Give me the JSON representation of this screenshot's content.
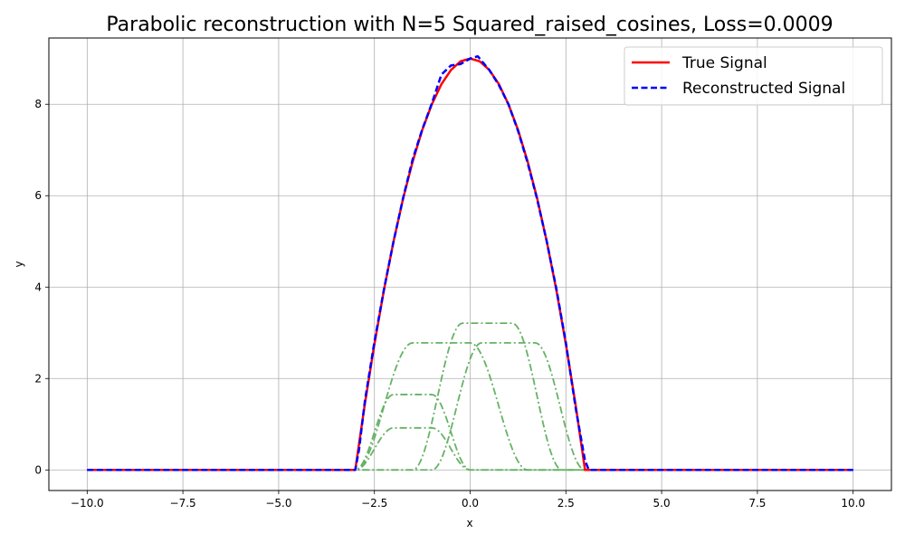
{
  "chart_data": {
    "type": "line",
    "title": "Parabolic reconstruction with N=5 Squared_raised_cosines, Loss=0.0009",
    "xlabel": "x",
    "ylabel": "y",
    "xlim": [
      -11,
      11
    ],
    "ylim": [
      -0.45,
      9.45
    ],
    "xticks": [
      -10,
      -7.5,
      -5,
      -2.5,
      0,
      2.5,
      5,
      7.5,
      10
    ],
    "xtick_labels": [
      "−10.0",
      "−7.5",
      "−5.0",
      "−2.5",
      "0.0",
      "2.5",
      "5.0",
      "7.5",
      "10.0"
    ],
    "yticks": [
      0,
      2,
      4,
      6,
      8
    ],
    "ytick_labels": [
      "0",
      "2",
      "4",
      "6",
      "8"
    ],
    "grid": true,
    "legend_position": "top-right",
    "series": [
      {
        "name": "True Signal",
        "color": "#ff0000",
        "style": "solid",
        "x": [
          -10,
          -3.05,
          -3.0,
          -2.75,
          -2.5,
          -2.25,
          -2.0,
          -1.75,
          -1.5,
          -1.25,
          -1.0,
          -0.75,
          -0.5,
          -0.25,
          0.0,
          0.25,
          0.5,
          0.75,
          1.0,
          1.25,
          1.5,
          1.75,
          2.0,
          2.25,
          2.5,
          2.75,
          3.0,
          3.05,
          10
        ],
        "y": [
          0,
          0,
          0,
          1.44,
          2.75,
          3.94,
          5.0,
          5.94,
          6.75,
          7.44,
          8.0,
          8.44,
          8.75,
          8.94,
          9.0,
          8.94,
          8.75,
          8.44,
          8.0,
          7.44,
          6.75,
          5.94,
          5.0,
          3.94,
          2.75,
          1.44,
          0,
          0,
          0
        ]
      },
      {
        "name": "Reconstructed Signal",
        "color": "#0000ff",
        "style": "dashed",
        "x": [
          -10,
          -3.0,
          -2.9,
          -2.75,
          -2.5,
          -2.25,
          -2.0,
          -1.75,
          -1.5,
          -1.25,
          -1.0,
          -0.75,
          -0.5,
          -0.25,
          0.0,
          0.2,
          0.5,
          0.75,
          1.0,
          1.25,
          1.5,
          1.75,
          2.0,
          2.25,
          2.5,
          2.75,
          3.0,
          3.1,
          10
        ],
        "y": [
          0,
          0,
          0.45,
          1.5,
          2.8,
          3.95,
          5.0,
          5.95,
          6.8,
          7.45,
          8.02,
          8.65,
          8.85,
          8.88,
          9.0,
          9.05,
          8.75,
          8.42,
          8.0,
          7.42,
          6.72,
          5.92,
          5.0,
          3.97,
          2.78,
          1.38,
          0.2,
          0,
          0
        ]
      },
      {
        "color": "#66b266",
        "style": "dashdot",
        "basis": true,
        "center": -1.5,
        "half_width": 1.5,
        "flat_half_width": 0.5,
        "amplitude": 0.92
      },
      {
        "color": "#66b266",
        "style": "dashdot",
        "basis": true,
        "center": -1.5,
        "half_width": 1.5,
        "flat_half_width": 0.5,
        "amplitude": 1.65
      },
      {
        "color": "#66b266",
        "style": "dashdot",
        "basis": true,
        "center": -0.75,
        "half_width": 2.25,
        "flat_half_width": 0.75,
        "amplitude": 2.78
      },
      {
        "color": "#66b266",
        "style": "dashdot",
        "basis": true,
        "center": 0.45,
        "half_width": 1.95,
        "flat_half_width": 0.65,
        "amplitude": 3.21
      },
      {
        "color": "#66b266",
        "style": "dashdot",
        "basis": true,
        "center": 1.0,
        "half_width": 2.0,
        "flat_half_width": 0.7,
        "amplitude": 2.78
      }
    ]
  }
}
